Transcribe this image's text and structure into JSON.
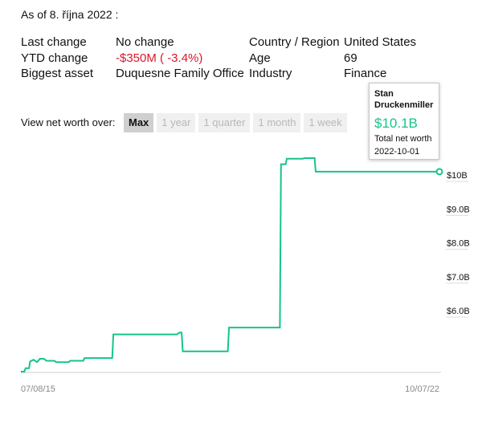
{
  "as_of": "As of 8. října 2022 :",
  "stats": {
    "last_change_label": "Last change",
    "last_change_value": "No change",
    "ytd_label": "YTD change",
    "ytd_value": "-$350M ( -3.4%)",
    "asset_label": "Biggest asset",
    "asset_value": "Duquesne Family Office",
    "country_label": "Country / Region",
    "country_value": "United States",
    "age_label": "Age",
    "age_value": "69",
    "industry_label": "Industry",
    "industry_value": "Finance"
  },
  "view_over": {
    "label": "View net worth over:",
    "options": [
      "Max",
      "1 year",
      "1 quarter",
      "1 month",
      "1 week"
    ],
    "selected": "Max"
  },
  "tooltip": {
    "name": "Stan Druckenmiller",
    "value": "$10.1B",
    "caption": "Total net worth",
    "date": "2022-10-01"
  },
  "colors": {
    "line": "#16c48a",
    "negative": "#d7182a"
  },
  "chart_data": {
    "type": "line",
    "x_start": "07/08/15",
    "x_end": "10/07/22",
    "yticks": [
      {
        "value": 6.0,
        "label": "$6.0B"
      },
      {
        "value": 7.0,
        "label": "$7.0B"
      },
      {
        "value": 8.0,
        "label": "$8.0B"
      },
      {
        "value": 9.0,
        "label": "$9.0B"
      },
      {
        "value": 10.0,
        "label": "$10B"
      }
    ],
    "ylim": [
      4.2,
      10.5
    ],
    "points": [
      [
        2015.52,
        4.2
      ],
      [
        2015.58,
        4.2
      ],
      [
        2015.6,
        4.3
      ],
      [
        2015.66,
        4.3
      ],
      [
        2015.68,
        4.5
      ],
      [
        2015.74,
        4.55
      ],
      [
        2015.8,
        4.48
      ],
      [
        2015.85,
        4.58
      ],
      [
        2015.92,
        4.58
      ],
      [
        2015.96,
        4.52
      ],
      [
        2016.1,
        4.52
      ],
      [
        2016.13,
        4.48
      ],
      [
        2016.35,
        4.48
      ],
      [
        2016.37,
        4.52
      ],
      [
        2016.6,
        4.52
      ],
      [
        2016.62,
        4.6
      ],
      [
        2017.1,
        4.6
      ],
      [
        2017.12,
        5.3
      ],
      [
        2018.22,
        5.3
      ],
      [
        2018.26,
        5.35
      ],
      [
        2018.3,
        5.35
      ],
      [
        2018.32,
        4.8
      ],
      [
        2019.1,
        4.8
      ],
      [
        2019.12,
        5.5
      ],
      [
        2019.92,
        5.5
      ],
      [
        2019.94,
        5.5
      ],
      [
        2020.0,
        5.5
      ],
      [
        2020.02,
        10.32
      ],
      [
        2020.1,
        10.32
      ],
      [
        2020.12,
        10.48
      ],
      [
        2020.4,
        10.48
      ],
      [
        2020.42,
        10.5
      ],
      [
        2020.6,
        10.5
      ],
      [
        2020.62,
        10.1
      ],
      [
        2022.76,
        10.1
      ]
    ]
  }
}
